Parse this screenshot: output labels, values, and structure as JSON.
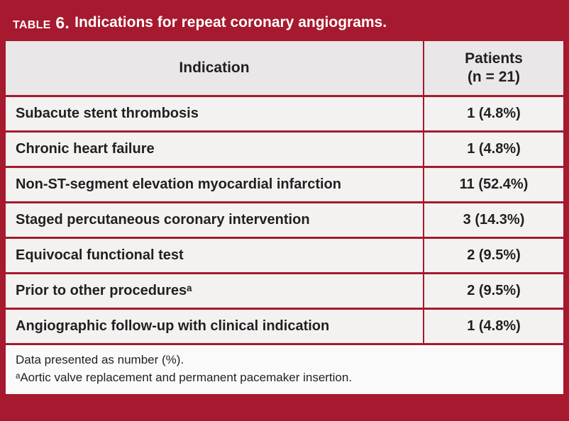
{
  "title": {
    "label": "Table 6.",
    "text": "Indications for repeat coronary angiograms."
  },
  "colors": {
    "maroon": "#a6192e",
    "header_row_bg": "#e9e7e7",
    "data_row_bg": "#f3f2f1",
    "footer_bg": "#fbfafa",
    "text": "#231f20",
    "title_text": "#ffffff"
  },
  "table": {
    "columns": {
      "indication": "Indication",
      "patients_line1": "Patients",
      "patients_line2": "(n = 21)"
    },
    "rows": [
      {
        "indication": "Subacute stent thrombosis",
        "patients": "1 (4.8%)"
      },
      {
        "indication": "Chronic heart failure",
        "patients": "1 (4.8%)"
      },
      {
        "indication": "Non-ST-segment elevation myocardial infarction",
        "patients": "11 (52.4%)"
      },
      {
        "indication": "Staged percutaneous coronary intervention",
        "patients": "3 (14.3%)"
      },
      {
        "indication": "Equivocal functional test",
        "patients": "2 (9.5%)"
      },
      {
        "indication": "Prior to other proceduresᵃ",
        "patients": "2 (9.5%)"
      },
      {
        "indication": "Angiographic follow-up with clinical indication",
        "patients": "1 (4.8%)"
      }
    ]
  },
  "footnotes": {
    "line1": "Data presented as number (%).",
    "line2": "ᵃAortic valve replacement and permanent pacemaker insertion."
  }
}
